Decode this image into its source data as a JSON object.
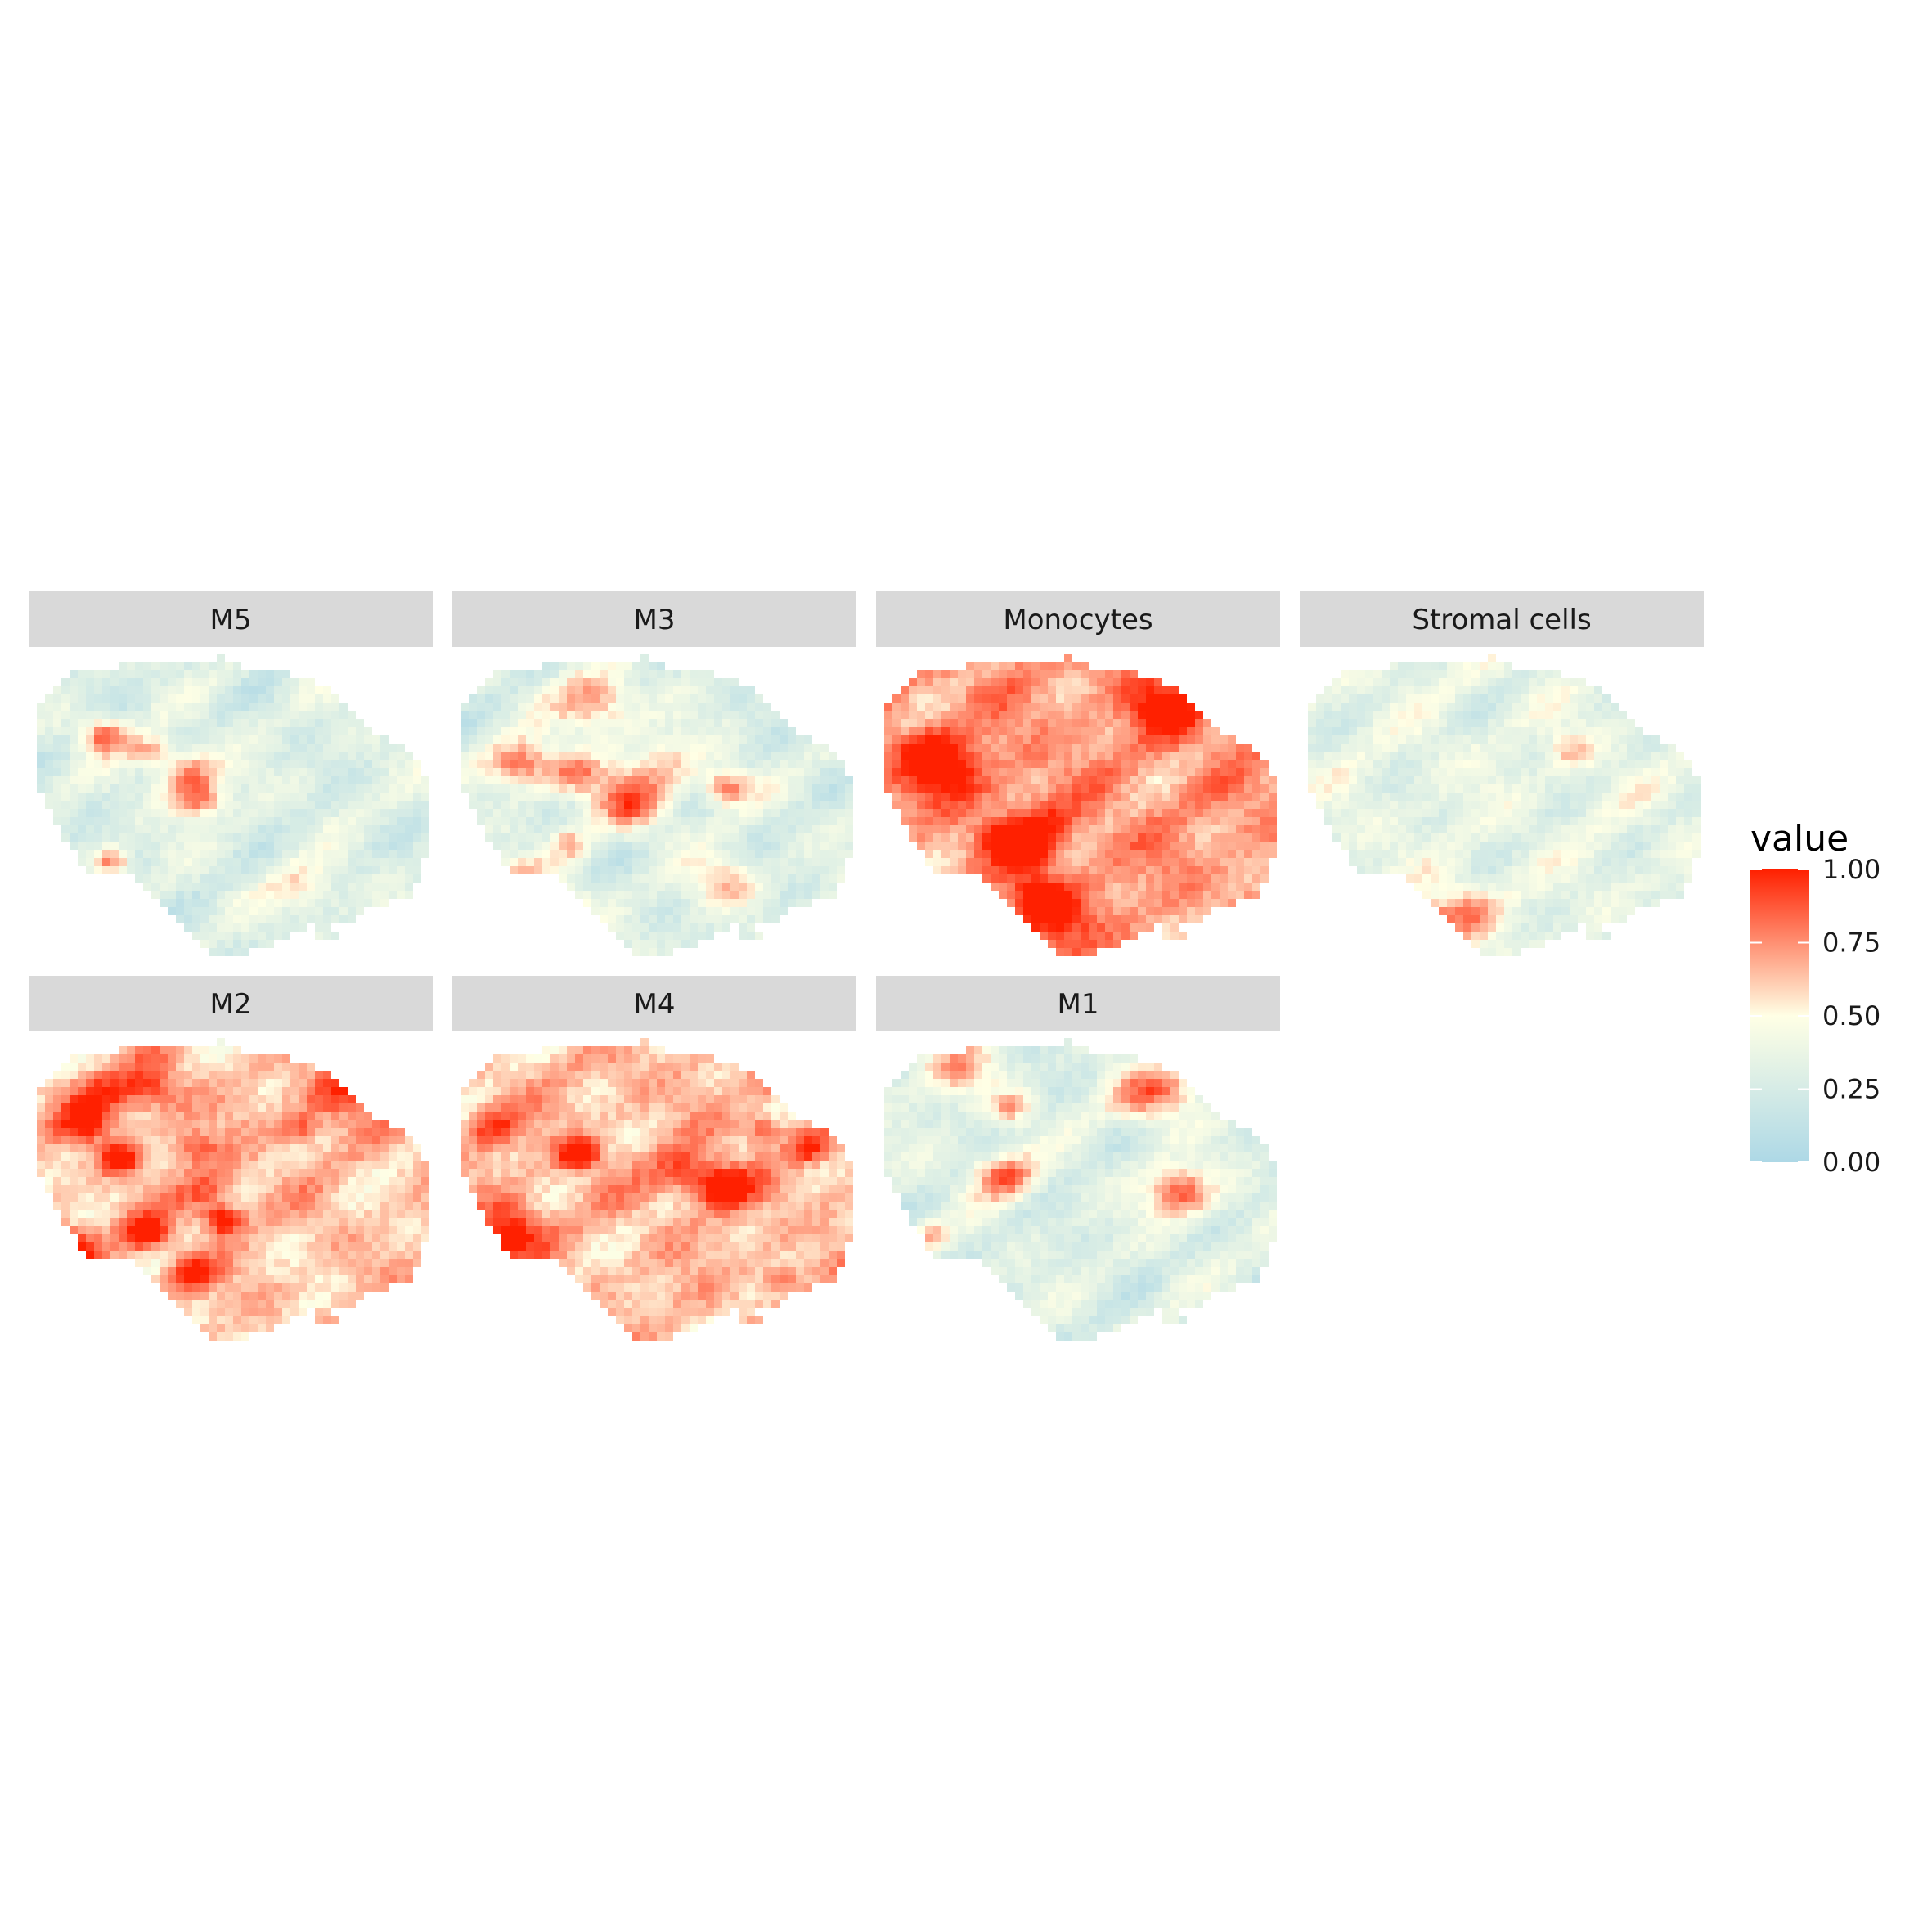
{
  "chart_data": {
    "type": "heatmap",
    "title": "",
    "xlabel": "",
    "ylabel": "",
    "facets": [
      {
        "name": "M5",
        "level": 0.3,
        "hotspots": 6,
        "seed": 11
      },
      {
        "name": "M3",
        "level": 0.3,
        "hotspots": 10,
        "seed": 23
      },
      {
        "name": "Monocytes",
        "level": 0.72,
        "hotspots": 8,
        "seed": 37
      },
      {
        "name": "Stromal cells",
        "level": 0.36,
        "hotspots": 3,
        "seed": 41
      },
      {
        "name": "M2",
        "level": 0.62,
        "hotspots": 12,
        "seed": 53
      },
      {
        "name": "M4",
        "level": 0.64,
        "hotspots": 10,
        "seed": 67
      },
      {
        "name": "M1",
        "level": 0.3,
        "hotspots": 7,
        "seed": 79
      }
    ],
    "legend": {
      "title": "value",
      "position": "right",
      "range": [
        0,
        1
      ],
      "ticks": [
        "1.00",
        "0.75",
        "0.50",
        "0.25",
        "0.00"
      ],
      "colors": {
        "low": "#add8e6",
        "mid": "#ffffe5",
        "high": "#ff2000"
      }
    }
  }
}
